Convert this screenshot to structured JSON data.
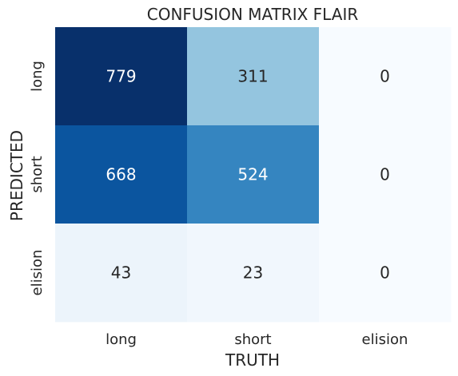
{
  "chart_data": {
    "type": "heatmap",
    "title": "CONFUSION MATRIX FLAIR",
    "xlabel": "TRUTH",
    "ylabel": "PREDICTED",
    "x_categories": [
      "long",
      "short",
      "elision"
    ],
    "y_categories": [
      "long",
      "short",
      "elision"
    ],
    "values": [
      [
        779,
        311,
        0
      ],
      [
        668,
        524,
        0
      ],
      [
        43,
        23,
        0
      ]
    ],
    "colormap": "Blues",
    "color_range": [
      0,
      779
    ],
    "colorbar": false,
    "grid": false
  }
}
